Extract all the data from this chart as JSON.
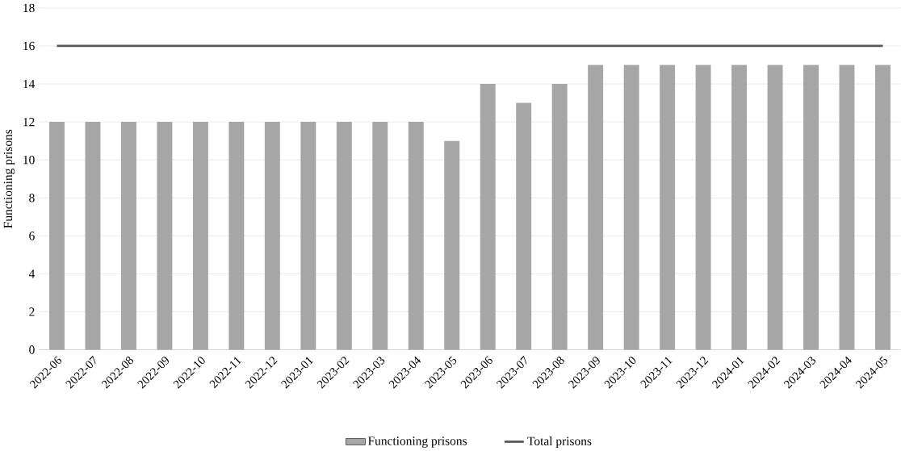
{
  "chart_data": {
    "type": "bar",
    "ylabel": "Functioning prisons",
    "categories": [
      "2022-06",
      "2022-07",
      "2022-08",
      "2022-09",
      "2022-10",
      "2022-11",
      "2022-12",
      "2023-01",
      "2023-02",
      "2023-03",
      "2023-04",
      "2023-05",
      "2023-06",
      "2023-07",
      "2023-08",
      "2023-09",
      "2023-10",
      "2023-11",
      "2023-12",
      "2024-01",
      "2024-02",
      "2024-03",
      "2024-04",
      "2024-05"
    ],
    "series": [
      {
        "name": "Functioning prisons",
        "color": "#a6a6a6",
        "values": [
          12,
          12,
          12,
          12,
          12,
          12,
          12,
          12,
          12,
          12,
          12,
          11,
          14,
          13,
          14,
          15,
          15,
          15,
          15,
          15,
          15,
          15,
          15,
          15
        ]
      },
      {
        "name": "Total prisons",
        "type": "line",
        "color": "#595959",
        "values": [
          16,
          16,
          16,
          16,
          16,
          16,
          16,
          16,
          16,
          16,
          16,
          16,
          16,
          16,
          16,
          16,
          16,
          16,
          16,
          16,
          16,
          16,
          16,
          16
        ]
      }
    ],
    "ylim": [
      0,
      18
    ],
    "yticks": [
      0,
      2,
      4,
      6,
      8,
      10,
      12,
      14,
      16,
      18
    ],
    "grid": "y",
    "legend": "bottom"
  }
}
